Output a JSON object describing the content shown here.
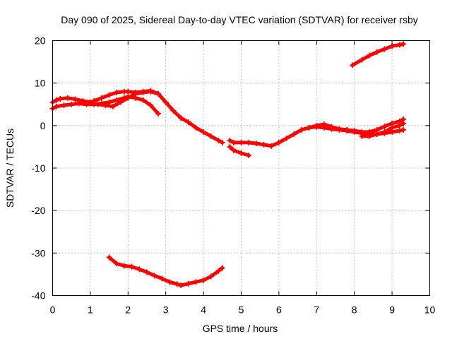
{
  "chart_data": {
    "type": "scatter",
    "title": "Day 090 of 2025, Sidereal Day-to-day VTEC variation (SDTVAR) for receiver rsby",
    "xlabel": "GPS time / hours",
    "ylabel": "SDTVAR / TECUs",
    "xlim": [
      0,
      10
    ],
    "ylim": [
      -40,
      20
    ],
    "x_ticks": [
      0,
      1,
      2,
      3,
      4,
      5,
      6,
      7,
      8,
      9,
      10
    ],
    "y_ticks": [
      -40,
      -30,
      -20,
      -10,
      0,
      10,
      20
    ],
    "grid": true,
    "marker": "plus",
    "color": "#ff0000",
    "series": [
      {
        "name": "arc-1",
        "x": [
          0.0,
          0.1,
          0.2,
          0.4,
          0.6,
          0.8,
          1.0,
          1.1,
          1.3,
          1.5,
          1.7,
          1.9,
          2.0,
          2.2,
          2.4,
          2.6,
          2.8,
          3.0,
          3.2,
          3.4,
          3.6,
          3.8,
          4.0,
          4.2,
          4.4,
          4.5
        ],
        "y": [
          5.5,
          6.0,
          6.3,
          6.5,
          6.2,
          5.8,
          5.5,
          5.8,
          6.5,
          7.2,
          7.8,
          8.0,
          8.0,
          7.8,
          8.0,
          8.2,
          7.5,
          5.5,
          3.5,
          1.8,
          0.8,
          -0.5,
          -1.5,
          -2.5,
          -3.5,
          -4.0
        ]
      },
      {
        "name": "arc-2",
        "x": [
          0.0,
          0.1,
          0.3,
          0.5,
          0.7,
          0.9,
          1.1,
          1.3,
          1.5,
          1.7,
          1.9,
          2.0,
          2.2,
          2.4,
          2.6,
          2.8
        ],
        "y": [
          4.0,
          4.5,
          4.8,
          5.0,
          5.2,
          5.0,
          5.0,
          5.2,
          5.5,
          6.0,
          6.5,
          6.8,
          6.5,
          6.0,
          4.8,
          2.8
        ]
      },
      {
        "name": "arc-3",
        "x": [
          1.2,
          1.4,
          1.6,
          1.8,
          2.0,
          2.2,
          2.4,
          2.6,
          2.8
        ],
        "y": [
          5.0,
          4.8,
          4.5,
          5.5,
          6.5,
          7.5,
          7.8,
          8.0,
          7.5
        ]
      },
      {
        "name": "arc-4",
        "x": [
          4.7,
          4.8,
          5.0,
          5.2,
          5.4,
          5.6,
          5.8,
          6.0,
          6.2,
          6.4,
          6.6,
          6.8,
          7.0,
          7.2,
          7.4,
          7.6,
          7.8,
          8.0,
          8.2,
          8.4,
          8.6,
          8.8,
          9.0,
          9.2,
          9.3
        ],
        "y": [
          -3.5,
          -4.0,
          -4.0,
          -4.0,
          -4.2,
          -4.5,
          -4.8,
          -4.0,
          -3.0,
          -2.0,
          -1.0,
          -0.5,
          -0.3,
          -0.5,
          -0.8,
          -1.0,
          -1.2,
          -1.5,
          -1.8,
          -2.0,
          -2.0,
          -1.8,
          -1.5,
          -1.2,
          -1.0
        ]
      },
      {
        "name": "arc-5",
        "x": [
          4.7,
          4.8,
          5.0,
          5.2
        ],
        "y": [
          -5.0,
          -5.8,
          -6.5,
          -7.0
        ]
      },
      {
        "name": "arc-6",
        "x": [
          6.8,
          7.0,
          7.2,
          7.4,
          7.6,
          7.8,
          8.0,
          8.2,
          8.4,
          8.6,
          8.8,
          9.0,
          9.2,
          9.3
        ],
        "y": [
          -0.5,
          0.0,
          0.3,
          -0.3,
          -0.8,
          -1.0,
          -1.2,
          -1.5,
          -1.5,
          -1.0,
          -0.2,
          0.5,
          1.0,
          1.5
        ]
      },
      {
        "name": "arc-7",
        "x": [
          8.2,
          8.4,
          8.6,
          8.8,
          9.0,
          9.2,
          9.3
        ],
        "y": [
          -2.5,
          -2.5,
          -2.0,
          -1.5,
          -0.5,
          0.0,
          0.5
        ]
      },
      {
        "name": "arc-8",
        "x": [
          7.95,
          8.2,
          8.4,
          8.6,
          8.8,
          9.0,
          9.2,
          9.3
        ],
        "y": [
          14.2,
          15.5,
          16.5,
          17.3,
          18.0,
          18.7,
          19.0,
          19.2
        ]
      },
      {
        "name": "arc-9",
        "x": [
          1.5,
          1.7,
          1.9,
          2.1,
          2.3,
          2.5,
          2.7,
          2.9,
          3.1,
          3.3,
          3.4,
          3.6,
          3.8,
          4.0,
          4.2,
          4.4,
          4.5
        ],
        "y": [
          -31.0,
          -32.5,
          -33.0,
          -33.2,
          -33.8,
          -34.5,
          -35.3,
          -36.0,
          -36.8,
          -37.3,
          -37.6,
          -37.2,
          -36.8,
          -36.4,
          -35.5,
          -34.2,
          -33.5
        ]
      }
    ]
  }
}
